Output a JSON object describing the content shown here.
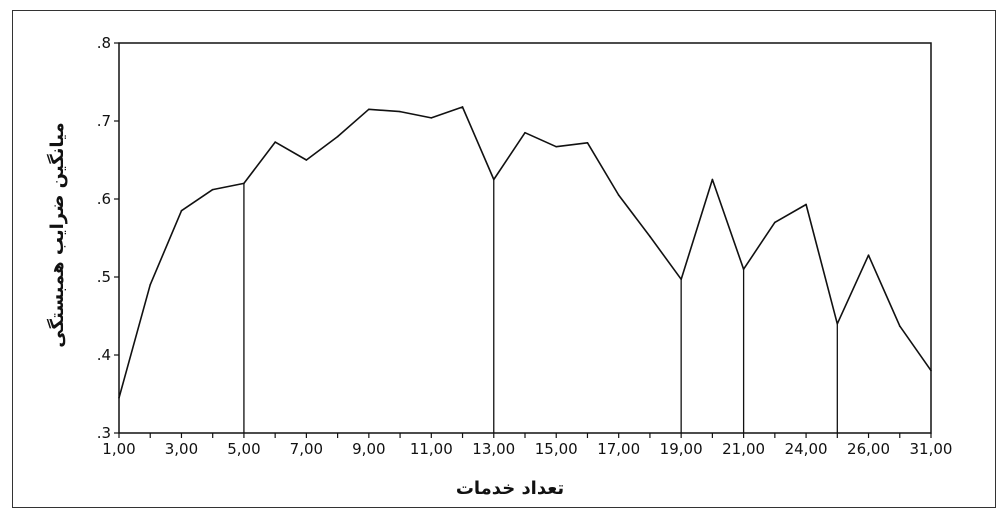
{
  "chart_data": {
    "type": "line",
    "title": "",
    "xlabel": "تعداد خدمات",
    "ylabel": "میانگین ضرایب همبستگی",
    "ylim": [
      0.3,
      0.8
    ],
    "y_ticks": [
      ".3",
      ".4",
      ".5",
      ".6",
      ".7",
      ".8"
    ],
    "x_tick_labels": [
      "1,00",
      "3,00",
      "5,00",
      "7,00",
      "9,00",
      "11,00",
      "13,00",
      "15,00",
      "17,00",
      "19,00",
      "21,00",
      "24,00",
      "26,00",
      "31,00"
    ],
    "categories": [
      "1,00",
      "2,00",
      "3,00",
      "4,00",
      "5,00",
      "6,00",
      "7,00",
      "8,00",
      "9,00",
      "10,00",
      "11,00",
      "12,00",
      "13,00",
      "14,00",
      "15,00",
      "16,00",
      "17,00",
      "18,00",
      "19,00",
      "20,00",
      "21,00",
      "22,00",
      "24,00",
      "25,00",
      "26,00",
      "27,00",
      "31,00"
    ],
    "values": [
      0.345,
      0.49,
      0.585,
      0.612,
      0.62,
      0.673,
      0.65,
      0.68,
      0.715,
      0.712,
      0.704,
      0.718,
      0.625,
      0.685,
      0.667,
      0.672,
      0.605,
      0.552,
      0.497,
      0.625,
      0.51,
      0.57,
      0.593,
      0.44,
      0.528,
      0.437,
      0.38
    ],
    "drop_lines_at": [
      "5,00",
      "13,00",
      "19,00",
      "21,00",
      "25,00"
    ],
    "grid": false,
    "legend": "none",
    "line_color": "#111111"
  }
}
